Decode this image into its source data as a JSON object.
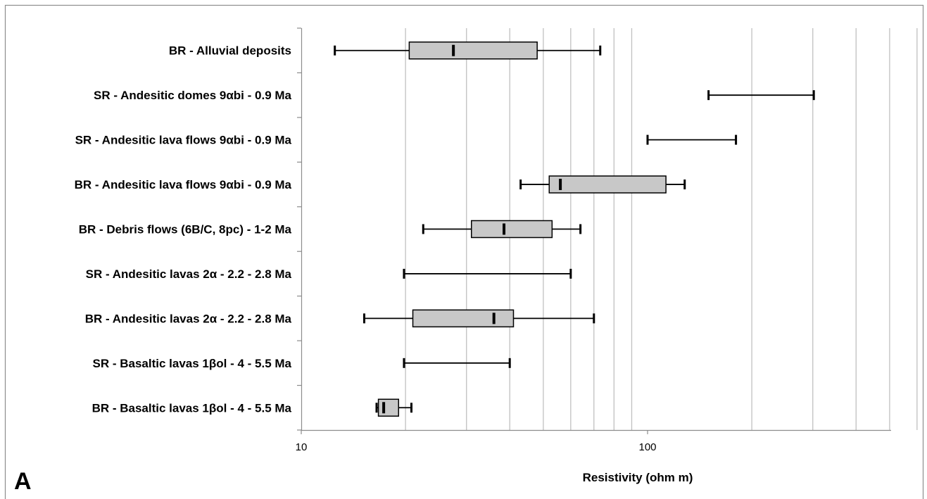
{
  "panel_label": "A",
  "chart_data": {
    "type": "box",
    "xlabel": "Resistivity (ohm m)",
    "x_scale": "log",
    "xlim": [
      10,
      600
    ],
    "x_ticks_labeled": [
      10,
      100
    ],
    "x_tick_labels": [
      "10",
      "100"
    ],
    "x_gridlines": [
      20,
      30,
      40,
      50,
      60,
      70,
      80,
      90,
      200,
      300,
      400,
      500,
      600
    ],
    "grid": true,
    "box_fill": "#c8c8c8",
    "line_color": "#000000",
    "grid_color": "#c0c0c0",
    "categories": [
      "BR - Alluvial deposits",
      "SR - Andesitic domes 9αbi - 0.9 Ma",
      "SR - Andesitic lava flows 9αbi - 0.9 Ma",
      "BR - Andesitic lava flows 9αbi - 0.9 Ma",
      "BR - Debris flows (6B/C, 8pc) - 1-2 Ma",
      "SR - Andesitic lavas 2α - 2.2 - 2.8 Ma",
      "BR - Andesitic lavas 2α - 2.2 - 2.8 Ma",
      "SR - Basaltic lavas 1βol - 4 - 5.5 Ma",
      "BR - Basaltic lavas 1βol - 4 - 5.5 Ma"
    ],
    "series": [
      {
        "min": 12.5,
        "q1": 20.5,
        "median": 27.5,
        "q3": 48,
        "max": 73
      },
      {
        "min": 150,
        "max": 302
      },
      {
        "min": 100,
        "max": 180
      },
      {
        "min": 43,
        "q1": 52,
        "median": 56,
        "q3": 113,
        "max": 128
      },
      {
        "min": 22.5,
        "q1": 31,
        "median": 38.5,
        "q3": 53,
        "max": 64
      },
      {
        "min": 19.8,
        "max": 60
      },
      {
        "min": 15.2,
        "q1": 21,
        "median": 36,
        "q3": 41,
        "max": 70
      },
      {
        "min": 19.8,
        "max": 40
      },
      {
        "min": 16.5,
        "q1": 16.7,
        "median": 17.3,
        "q3": 19.1,
        "max": 20.8
      }
    ]
  }
}
